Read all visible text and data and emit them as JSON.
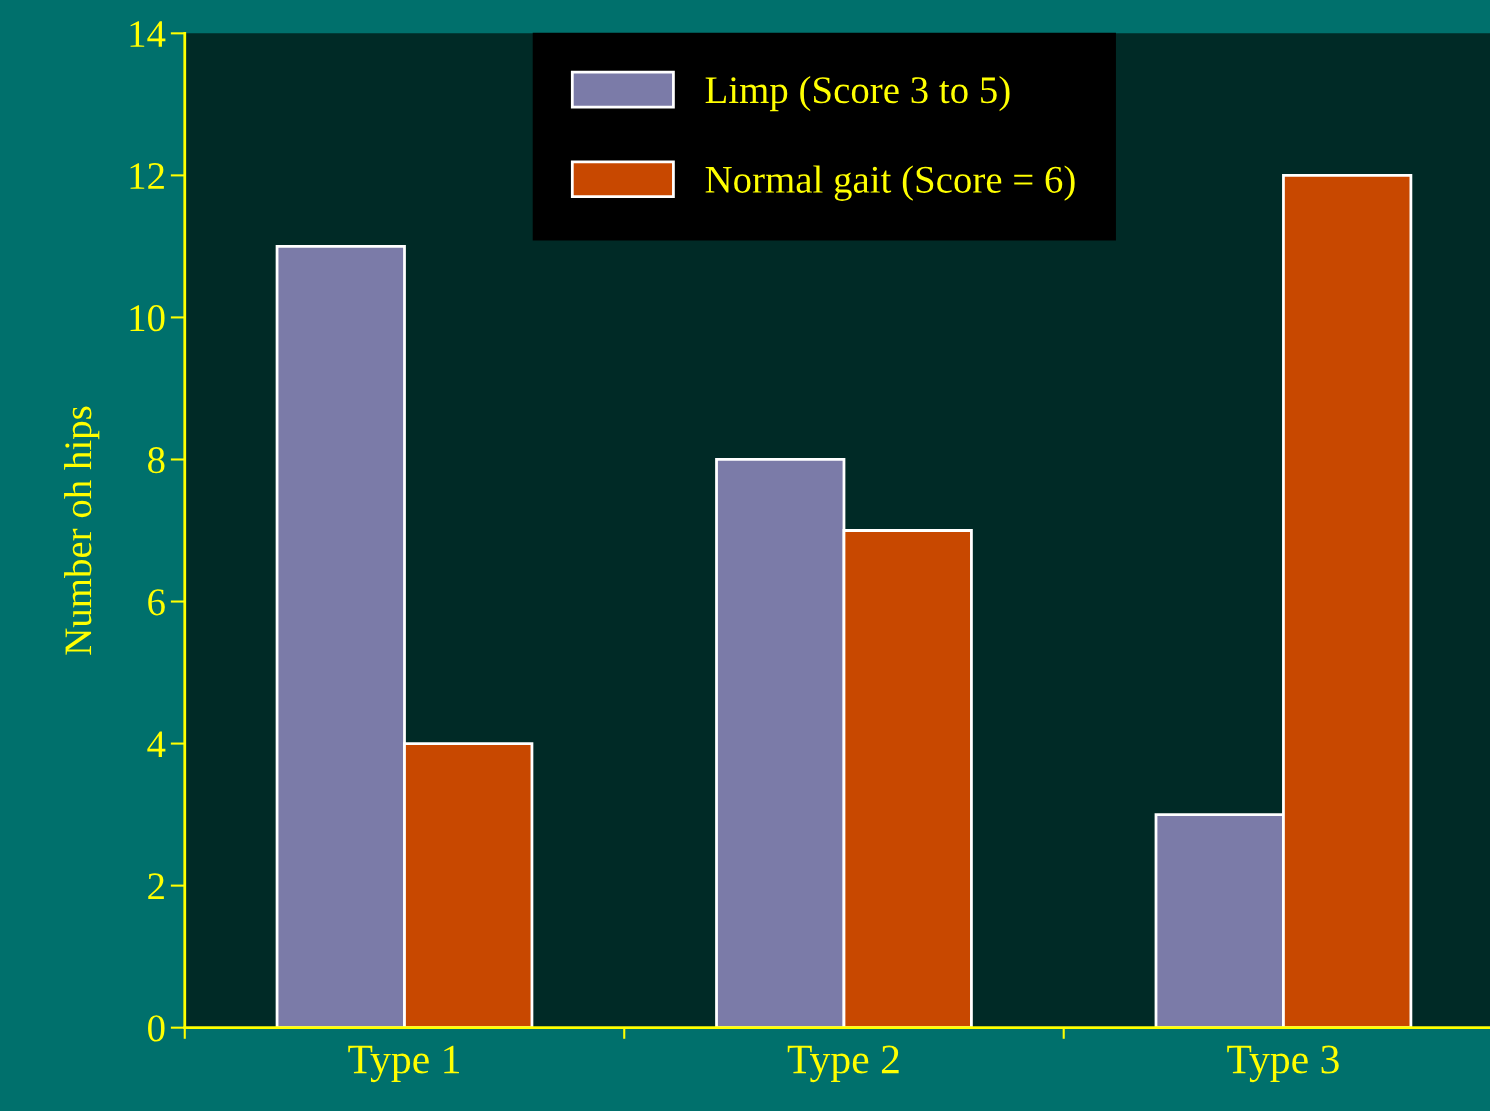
{
  "chart_data": {
    "type": "bar",
    "ylabel": "Number oh hips",
    "categories": [
      "Type 1",
      "Type 2",
      "Type 3"
    ],
    "series": [
      {
        "name": "Limp (Score 3 to 5)",
        "color": "#7b7ba8",
        "values": [
          11,
          8,
          3
        ]
      },
      {
        "name": "Normal gait (Score = 6)",
        "color": "#c84800",
        "values": [
          4,
          7,
          12
        ]
      }
    ],
    "ylim": [
      0,
      14
    ],
    "yticks": [
      0,
      2,
      4,
      6,
      8,
      10,
      12,
      14
    ],
    "grid": false,
    "legend": "top"
  }
}
